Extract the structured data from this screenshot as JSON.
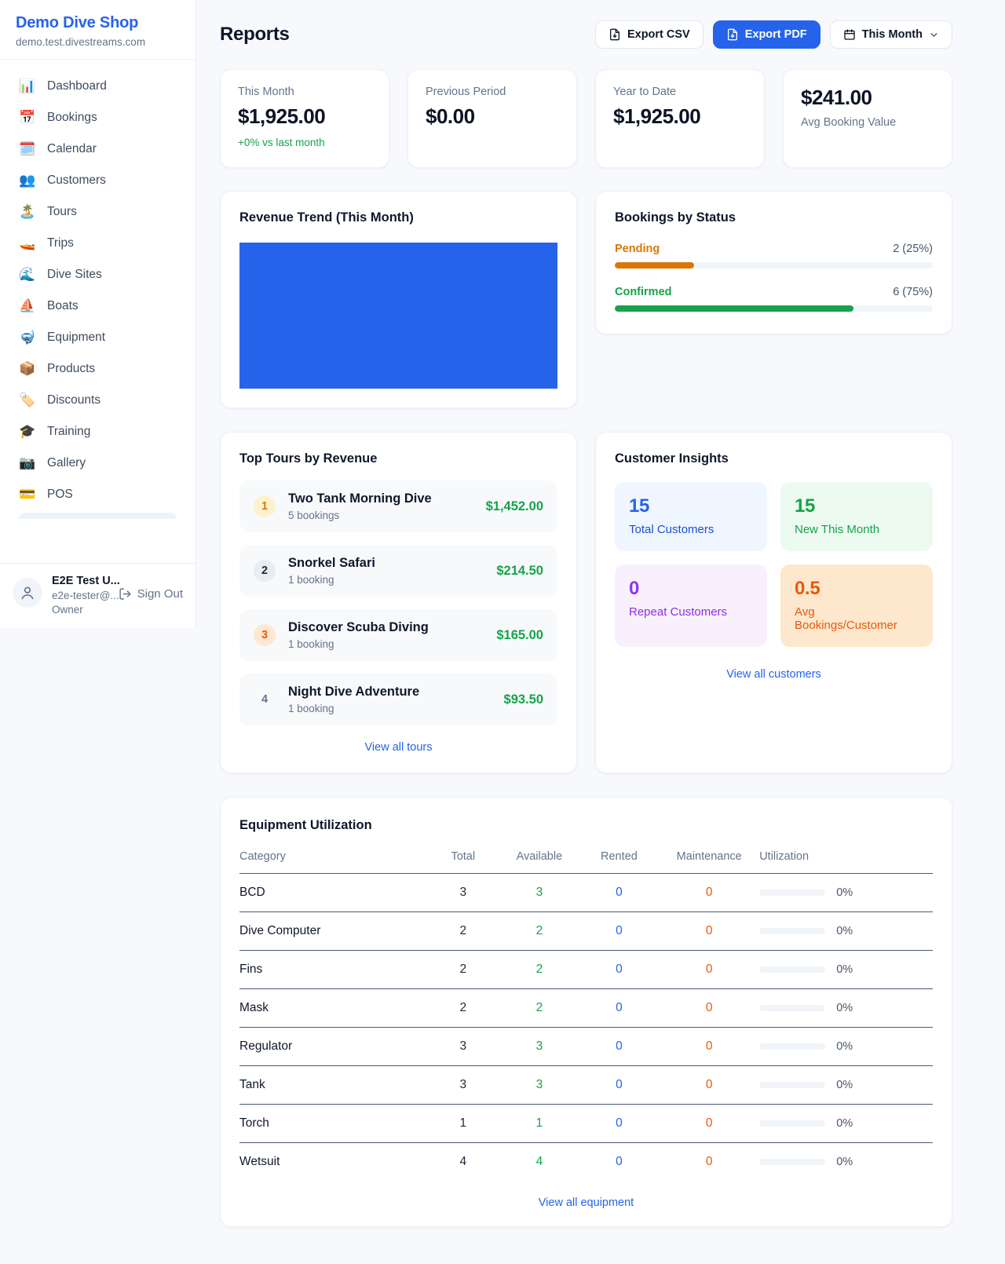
{
  "colors": {
    "accent_blue": "#2563eb",
    "green": "#16a34a",
    "pending_orange": "#d97706",
    "maintenance_orange": "#ea580c",
    "purple": "#9333ea"
  },
  "sidebar": {
    "brand": {
      "name": "Demo Dive Shop",
      "domain": "demo.test.divestreams.com"
    },
    "nav": [
      {
        "icon": "📊",
        "label": "Dashboard"
      },
      {
        "icon": "📅",
        "label": "Bookings"
      },
      {
        "icon": "🗓️",
        "label": "Calendar"
      },
      {
        "icon": "👥",
        "label": "Customers"
      },
      {
        "icon": "🏝️",
        "label": "Tours"
      },
      {
        "icon": "🚤",
        "label": "Trips"
      },
      {
        "icon": "🌊",
        "label": "Dive Sites"
      },
      {
        "icon": "⛵",
        "label": "Boats"
      },
      {
        "icon": "🤿",
        "label": "Equipment"
      },
      {
        "icon": "📦",
        "label": "Products"
      },
      {
        "icon": "🏷️",
        "label": "Discounts"
      },
      {
        "icon": "🎓",
        "label": "Training"
      },
      {
        "icon": "📷",
        "label": "Gallery"
      },
      {
        "icon": "💳",
        "label": "POS"
      }
    ],
    "user": {
      "name": "E2E Test U...",
      "email": "e2e-tester@...",
      "role": "Owner",
      "sign_out_label": "Sign Out"
    }
  },
  "header": {
    "title": "Reports",
    "export_csv_label": "Export CSV",
    "export_pdf_label": "Export PDF",
    "period_label": "This Month"
  },
  "stats": [
    {
      "label": "This Month",
      "value": "$1,925.00",
      "trend": "+0% vs last month"
    },
    {
      "label": "Previous Period",
      "value": "$0.00"
    },
    {
      "label": "Year to Date",
      "value": "$1,925.00"
    },
    {
      "label": "Avg Booking Value",
      "value": "$241.00"
    }
  ],
  "revenue_trend": {
    "title": "Revenue Trend (This Month)",
    "chart_data": {
      "type": "bar",
      "categories": [
        "This Month"
      ],
      "values": [
        1925
      ],
      "bar_color": "#2563eb"
    }
  },
  "bookings_by_status": {
    "title": "Bookings by Status",
    "items": [
      {
        "label": "Pending",
        "count_text": "2 (25%)",
        "pct": 25
      },
      {
        "label": "Confirmed",
        "count_text": "6 (75%)",
        "pct": 75
      }
    ]
  },
  "top_tours": {
    "title": "Top Tours by Revenue",
    "items": [
      {
        "rank": "1",
        "name": "Two Tank Morning Dive",
        "bookings": "5 bookings",
        "revenue": "$1,452.00"
      },
      {
        "rank": "2",
        "name": "Snorkel Safari",
        "bookings": "1 booking",
        "revenue": "$214.50"
      },
      {
        "rank": "3",
        "name": "Discover Scuba Diving",
        "bookings": "1 booking",
        "revenue": "$165.00"
      },
      {
        "rank": "4",
        "name": "Night Dive Adventure",
        "bookings": "1 booking",
        "revenue": "$93.50"
      }
    ],
    "view_all": "View all tours"
  },
  "customer_insights": {
    "title": "Customer Insights",
    "tiles": [
      {
        "value": "15",
        "label": "Total Customers"
      },
      {
        "value": "15",
        "label": "New This Month"
      },
      {
        "value": "0",
        "label": "Repeat Customers"
      },
      {
        "value": "0.5",
        "label": "Avg Bookings/Customer"
      }
    ],
    "view_all": "View all customers"
  },
  "equipment": {
    "title": "Equipment Utilization",
    "columns": [
      "Category",
      "Total",
      "Available",
      "Rented",
      "Maintenance",
      "Utilization"
    ],
    "rows": [
      {
        "category": "BCD",
        "total": "3",
        "available": "3",
        "rented": "0",
        "maintenance": "0",
        "utilization": "0%"
      },
      {
        "category": "Dive Computer",
        "total": "2",
        "available": "2",
        "rented": "0",
        "maintenance": "0",
        "utilization": "0%"
      },
      {
        "category": "Fins",
        "total": "2",
        "available": "2",
        "rented": "0",
        "maintenance": "0",
        "utilization": "0%"
      },
      {
        "category": "Mask",
        "total": "2",
        "available": "2",
        "rented": "0",
        "maintenance": "0",
        "utilization": "0%"
      },
      {
        "category": "Regulator",
        "total": "3",
        "available": "3",
        "rented": "0",
        "maintenance": "0",
        "utilization": "0%"
      },
      {
        "category": "Tank",
        "total": "3",
        "available": "3",
        "rented": "0",
        "maintenance": "0",
        "utilization": "0%"
      },
      {
        "category": "Torch",
        "total": "1",
        "available": "1",
        "rented": "0",
        "maintenance": "0",
        "utilization": "0%"
      },
      {
        "category": "Wetsuit",
        "total": "4",
        "available": "4",
        "rented": "0",
        "maintenance": "0",
        "utilization": "0%"
      }
    ],
    "view_all": "View all equipment"
  }
}
